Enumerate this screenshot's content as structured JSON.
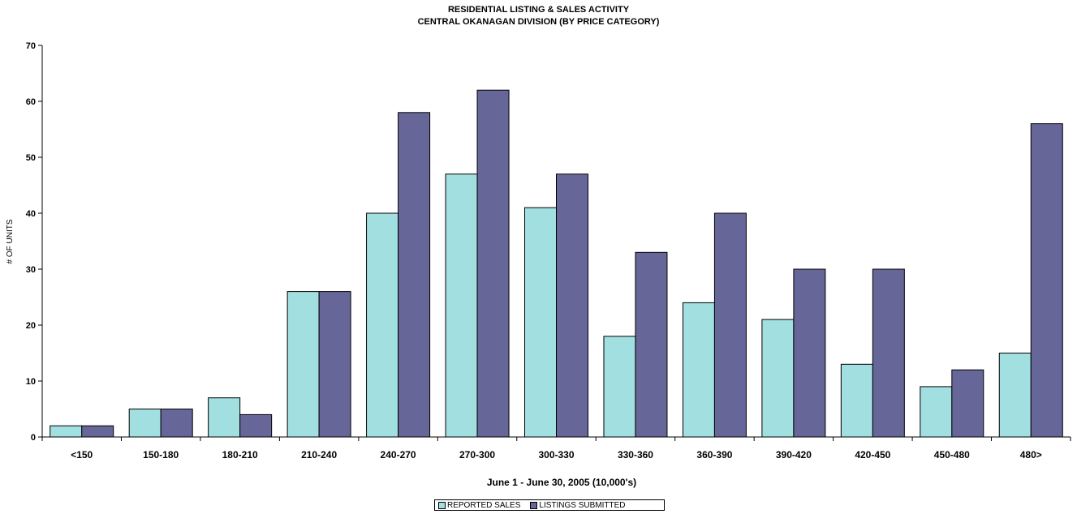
{
  "chart_data": {
    "type": "bar",
    "title": "RESIDENTIAL LISTING & SALES ACTIVITY",
    "subtitle": "CENTRAL OKANAGAN DIVISION (BY PRICE CATEGORY)",
    "xlabel": "June 1 - June 30, 2005 (10,000's)",
    "ylabel": "# OF UNITS",
    "ylim": [
      0,
      70
    ],
    "yticks": [
      0,
      10,
      20,
      30,
      40,
      50,
      60,
      70
    ],
    "grid": false,
    "legend_position": "bottom",
    "categories": [
      "<150",
      "150-180",
      "180-210",
      "210-240",
      "240-270",
      "270-300",
      "300-330",
      "330-360",
      "360-390",
      "390-420",
      "420-450",
      "450-480",
      "480>"
    ],
    "series": [
      {
        "name": "REPORTED SALES",
        "color": "#a2dfe0",
        "values": [
          2,
          5,
          7,
          26,
          40,
          47,
          41,
          18,
          24,
          21,
          13,
          9,
          15
        ]
      },
      {
        "name": "LISTINGS SUBMITTED",
        "color": "#666699",
        "values": [
          2,
          5,
          4,
          26,
          58,
          62,
          47,
          33,
          40,
          30,
          30,
          12,
          56
        ]
      }
    ]
  }
}
